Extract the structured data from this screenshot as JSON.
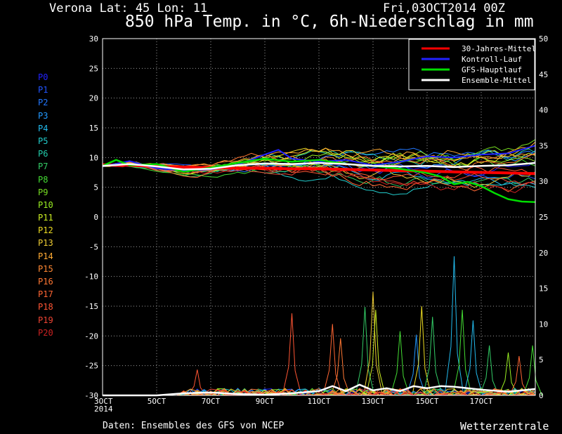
{
  "header": {
    "location": "Verona  Lat: 45 Lon: 11",
    "date": "Fri,03OCT2014 00Z",
    "title": "850 hPa Temp. in °C, 6h-Niederschlag in mm"
  },
  "footer": {
    "source": "Daten: Ensembles des GFS von NCEP",
    "brand": "Wetterzentrale"
  },
  "colors": {
    "background": "#000000",
    "grid": "#9a9a9a",
    "climate": "#ff0000",
    "control": "#2222ff",
    "gfs": "#00dd00",
    "mean": "#ffffff"
  },
  "chart_data": {
    "type": "line",
    "title": "850 hPa Temp. in °C, 6h-Niederschlag in mm",
    "xlabel": "",
    "ylabel_left": "",
    "ylabel_right": "",
    "ylim_left": [
      -30,
      30
    ],
    "ylim_right": [
      0,
      50
    ],
    "x_ticks": [
      "3OCT 2014",
      "5OCT",
      "7OCT",
      "9OCT",
      "11OCT",
      "13OCT",
      "15OCT",
      "17OCT"
    ],
    "x_range_days": [
      3,
      19
    ],
    "y_ticks_left": [
      30,
      25,
      20,
      15,
      10,
      5,
      0,
      -5,
      -10,
      -15,
      -20,
      -25,
      -30
    ],
    "y_ticks_right": [
      50,
      45,
      40,
      35,
      30,
      25,
      20,
      15,
      10,
      5,
      0
    ],
    "grid": true,
    "legend_position": "top-right",
    "legend": [
      {
        "label": "30-Jahres-Mittel",
        "color": "#ff0000"
      },
      {
        "label": "Kontroll-Lauf",
        "color": "#2222ff"
      },
      {
        "label": "GFS-Hauptlauf",
        "color": "#00dd00"
      },
      {
        "label": "Ensemble-Mittel",
        "color": "#ffffff"
      }
    ],
    "members": [
      {
        "name": "P0",
        "color": "#2222ff"
      },
      {
        "name": "P1",
        "color": "#2255ff"
      },
      {
        "name": "P2",
        "color": "#2277ff"
      },
      {
        "name": "P3",
        "color": "#2299ff"
      },
      {
        "name": "P4",
        "color": "#22bbee"
      },
      {
        "name": "P5",
        "color": "#22cccc"
      },
      {
        "name": "P6",
        "color": "#22ccaa"
      },
      {
        "name": "P7",
        "color": "#33cc66"
      },
      {
        "name": "P8",
        "color": "#44dd33"
      },
      {
        "name": "P9",
        "color": "#77dd22"
      },
      {
        "name": "P10",
        "color": "#99ee22"
      },
      {
        "name": "P11",
        "color": "#ccee22"
      },
      {
        "name": "P12",
        "color": "#eedd22"
      },
      {
        "name": "P13",
        "color": "#eecc33"
      },
      {
        "name": "P14",
        "color": "#ffaa33"
      },
      {
        "name": "P15",
        "color": "#ff8833"
      },
      {
        "name": "P16",
        "color": "#ff7733"
      },
      {
        "name": "P17",
        "color": "#ff6633"
      },
      {
        "name": "P18",
        "color": "#ff5533"
      },
      {
        "name": "P19",
        "color": "#ee4433"
      },
      {
        "name": "P20",
        "color": "#cc2222"
      }
    ],
    "series": [
      {
        "name": "30-Jahres-Mittel",
        "axis": "left",
        "x": [
          3,
          4,
          5,
          6,
          7,
          8,
          9,
          10,
          11,
          12,
          13,
          14,
          15,
          16,
          17,
          18,
          19
        ],
        "y": [
          8.8,
          8.7,
          8.5,
          8.4,
          8.3,
          8.2,
          8.2,
          8.1,
          8.1,
          8.0,
          7.9,
          7.8,
          7.7,
          7.6,
          7.5,
          7.4,
          7.3
        ]
      },
      {
        "name": "Kontroll-Lauf",
        "axis": "left",
        "x": [
          3,
          4,
          5,
          6,
          7,
          8,
          9,
          9.5,
          10,
          11,
          12,
          13,
          14,
          15,
          16,
          17,
          18,
          19
        ],
        "y": [
          8.5,
          9.4,
          8.2,
          7.8,
          8.0,
          8.8,
          10.5,
          11.3,
          9.8,
          9.3,
          9.6,
          8.7,
          9.3,
          10.2,
          10.0,
          10.5,
          10.7,
          12.0
        ]
      },
      {
        "name": "GFS-Hauptlauf",
        "axis": "left",
        "x": [
          3,
          3.5,
          4,
          5,
          6,
          7,
          8,
          9,
          10,
          11,
          12,
          13,
          14,
          15,
          15.5,
          16,
          16.5,
          17,
          17.5,
          18,
          18.5,
          19
        ],
        "y": [
          8.6,
          9.6,
          8.7,
          8.9,
          7.6,
          8.3,
          9.1,
          9.8,
          9.3,
          9.6,
          8.9,
          8.6,
          8.1,
          7.4,
          6.8,
          5.5,
          5.9,
          5.2,
          4.0,
          3.0,
          2.6,
          2.5
        ]
      },
      {
        "name": "Ensemble-Mittel",
        "axis": "left",
        "x": [
          3,
          4,
          5,
          6,
          7,
          8,
          9,
          10,
          11,
          12,
          13,
          14,
          15,
          16,
          17,
          18,
          19
        ],
        "y": [
          8.6,
          8.9,
          8.5,
          8.0,
          8.1,
          8.7,
          9.0,
          8.9,
          9.1,
          8.9,
          8.6,
          8.5,
          8.6,
          8.4,
          8.6,
          8.7,
          9.1
        ]
      },
      {
        "name": "Ensemble-Mittel Niederschlag",
        "axis": "right",
        "x": [
          3,
          5,
          6,
          7,
          8,
          9,
          10,
          11,
          11.5,
          12,
          12.5,
          13,
          13.5,
          14,
          14.5,
          15,
          15.5,
          16,
          17,
          18,
          19
        ],
        "y": [
          0,
          0,
          0.3,
          0.4,
          0.2,
          0.1,
          0.3,
          0.6,
          1.3,
          0.6,
          1.5,
          0.7,
          1.0,
          0.6,
          1.3,
          1.0,
          1.3,
          1.2,
          0.8,
          0.5,
          0.9
        ]
      }
    ],
    "precip_peaks": [
      {
        "color": "#ff5533",
        "x": 6.5,
        "y": 3.6
      },
      {
        "color": "#ff5533",
        "x": 10.0,
        "y": 11.5
      },
      {
        "color": "#ff6633",
        "x": 11.5,
        "y": 10.0
      },
      {
        "color": "#ff7733",
        "x": 11.8,
        "y": 8.0
      },
      {
        "color": "#33cc66",
        "x": 12.7,
        "y": 12.4
      },
      {
        "color": "#eecc33",
        "x": 13.0,
        "y": 14.5
      },
      {
        "color": "#ccee22",
        "x": 13.1,
        "y": 12.0
      },
      {
        "color": "#44dd33",
        "x": 14.0,
        "y": 9.0
      },
      {
        "color": "#2299ff",
        "x": 14.6,
        "y": 8.5
      },
      {
        "color": "#eedd22",
        "x": 14.8,
        "y": 12.5
      },
      {
        "color": "#33cc66",
        "x": 15.2,
        "y": 11.0
      },
      {
        "color": "#22bbee",
        "x": 16.0,
        "y": 19.5
      },
      {
        "color": "#44dd33",
        "x": 16.3,
        "y": 12.0
      },
      {
        "color": "#22bbee",
        "x": 16.7,
        "y": 10.5
      },
      {
        "color": "#33cc66",
        "x": 17.3,
        "y": 7.0
      },
      {
        "color": "#99ee22",
        "x": 18.0,
        "y": 6.0
      },
      {
        "color": "#ff6633",
        "x": 18.4,
        "y": 5.5
      },
      {
        "color": "#44dd33",
        "x": 18.9,
        "y": 7.0
      }
    ]
  }
}
